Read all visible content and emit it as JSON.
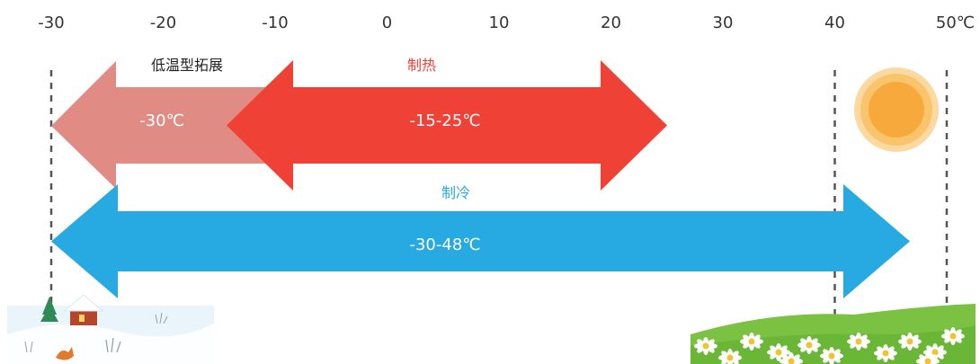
{
  "colors": {
    "cooling": "#27a9e1",
    "heating": "#ef4136",
    "low_temp": "#e08c84",
    "sun_outer": "#fbd9a0",
    "sun_mid": "#f9c46c",
    "sun_inner": "#f8a93b",
    "grass": "#7cc242",
    "snow": "#e9f4fb",
    "dashed_line": "#555555"
  },
  "scale": {
    "min": -30,
    "max": 50,
    "ticks": [
      {
        "value": -30,
        "label": "-30"
      },
      {
        "value": -20,
        "label": "-20"
      },
      {
        "value": -10,
        "label": "-10"
      },
      {
        "value": 0,
        "label": "0"
      },
      {
        "value": 10,
        "label": "10"
      },
      {
        "value": 20,
        "label": "20"
      },
      {
        "value": 30,
        "label": "30"
      },
      {
        "value": 40,
        "label": "40"
      },
      {
        "value": 50,
        "label": "50℃"
      }
    ]
  },
  "markers": [
    -30,
    40,
    50
  ],
  "ranges": {
    "low_temp": {
      "title": "低温型拓展",
      "label": "-30℃",
      "from": -30,
      "to": -15
    },
    "heating": {
      "title": "制热",
      "label": "-15-25℃",
      "from": -15,
      "to": 25
    },
    "cooling": {
      "title": "制冷",
      "label": "-30-48℃",
      "from": -30,
      "to": 48
    }
  },
  "icons": {
    "sun": "sun-icon",
    "winter": "winter-scene-icon",
    "flowers": "flower-field-icon"
  }
}
